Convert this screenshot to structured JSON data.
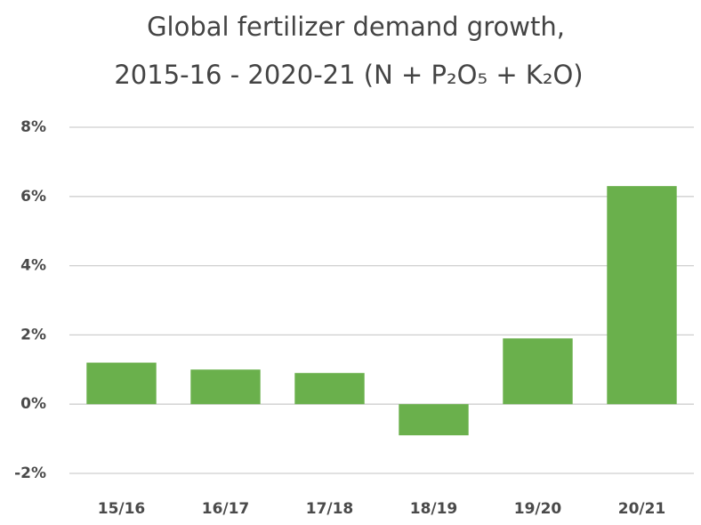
{
  "chart_data": {
    "type": "bar",
    "title": [
      "Global fertilizer demand growth,",
      "2015-16 - 2020-21 (N + P₂O₅ + K₂O)"
    ],
    "categories": [
      "15/16",
      "16/17",
      "17/18",
      "18/19",
      "19/20",
      "20/21"
    ],
    "values": [
      1.2,
      1.0,
      0.9,
      -0.9,
      1.9,
      6.3
    ],
    "color": "#6ab04c",
    "ylim": [
      -2,
      8
    ],
    "yticks": [
      {
        "value": -2,
        "label": "-2%"
      },
      {
        "value": 0,
        "label": "0%"
      },
      {
        "value": 2,
        "label": "2%"
      },
      {
        "value": 4,
        "label": "4%"
      },
      {
        "value": 6,
        "label": "6%"
      },
      {
        "value": 8,
        "label": "8%"
      }
    ],
    "grid": true
  }
}
